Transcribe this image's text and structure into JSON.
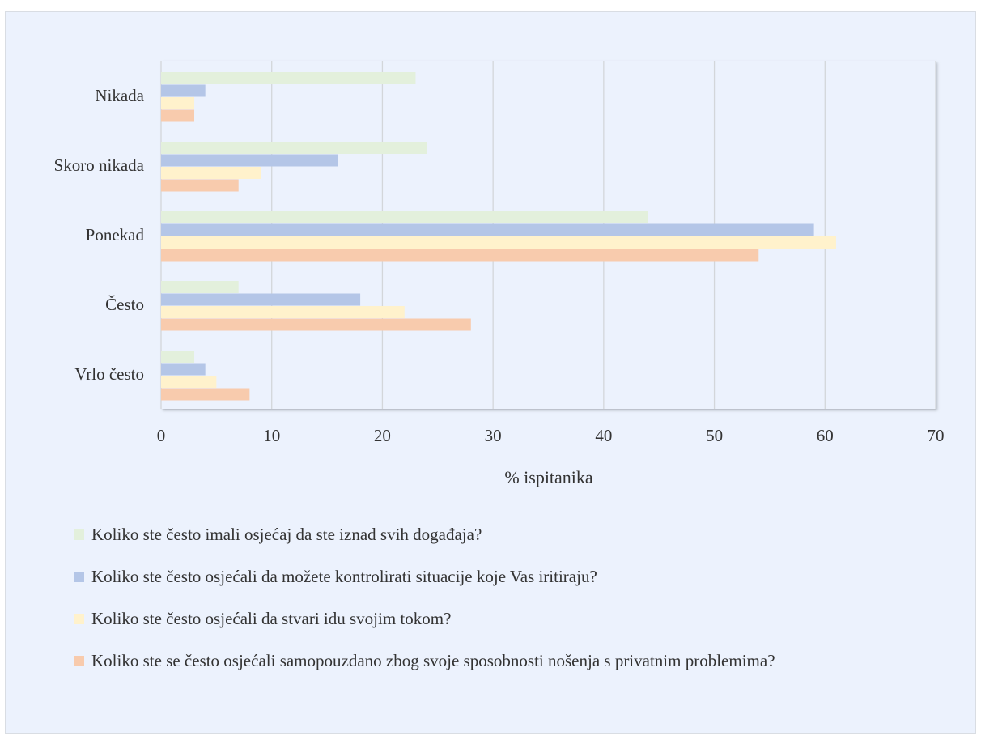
{
  "chart_data": {
    "type": "bar",
    "orientation": "horizontal",
    "categories": [
      "Nikada",
      "Skoro nikada",
      "Ponekad",
      "Često",
      "Vrlo često"
    ],
    "xlabel": "% ispitanika",
    "xlim": [
      0,
      70
    ],
    "xticks": [
      0,
      10,
      20,
      30,
      40,
      50,
      60,
      70
    ],
    "grid": true,
    "legend_position": "bottom",
    "series": [
      {
        "name": "Koliko ste često imali osjećaj da ste iznad svih događaja?",
        "color": "#e3f0dc",
        "values": [
          23,
          24,
          44,
          7,
          3
        ]
      },
      {
        "name": "Koliko ste često osjećali da možete kontrolirati situacije koje Vas iritiraju?",
        "color": "#b4c6e7",
        "values": [
          4,
          16,
          59,
          18,
          4
        ]
      },
      {
        "name": "Koliko ste često osjećali da stvari idu svojim tokom?",
        "color": "#fff2cc",
        "values": [
          3,
          9,
          61,
          22,
          5
        ]
      },
      {
        "name": "Koliko ste se često osjećali samopouzdano zbog svoje sposobnosti nošenja s privatnim problemima?",
        "color": "#f8cbad",
        "values": [
          3,
          7,
          54,
          28,
          8
        ]
      }
    ]
  }
}
